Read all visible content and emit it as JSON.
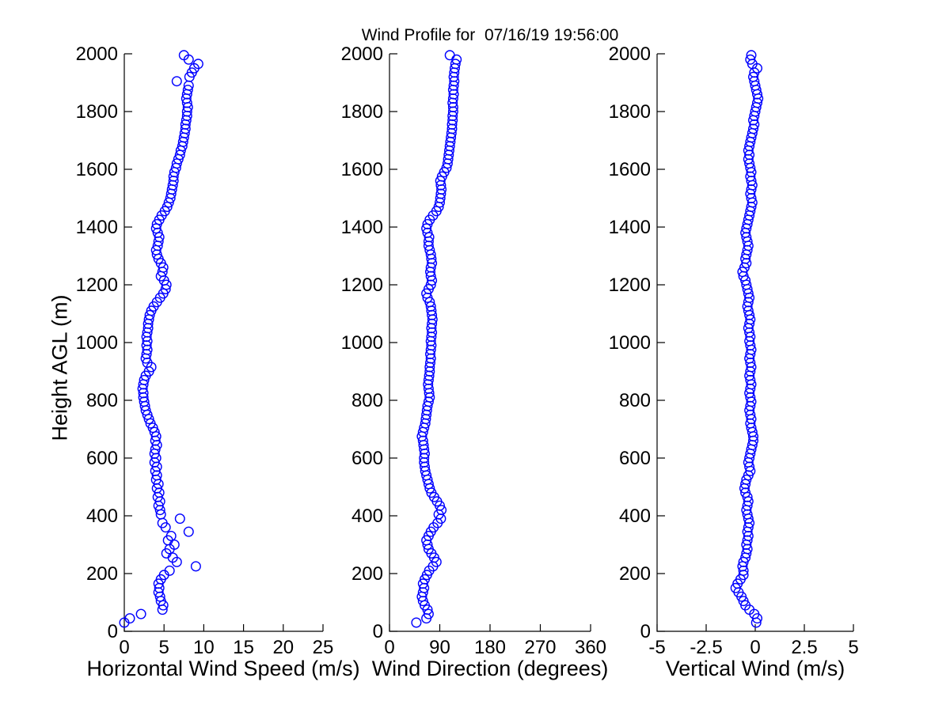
{
  "title": "Wind Profile for  07/16/19 19:56:00",
  "marker": {
    "shape": "open-circle",
    "color": "#0000FF"
  },
  "chart_data": {
    "type": "scatter",
    "title": "Wind Profile for  07/16/19 19:56:00",
    "ylabel": "Height AGL (m)",
    "ylim": [
      0,
      2000
    ],
    "yticks": [
      0,
      200,
      400,
      600,
      800,
      1000,
      1200,
      1400,
      1600,
      1800,
      2000
    ],
    "grid": false,
    "legend": null,
    "heights_m": [
      30,
      45,
      60,
      75,
      90,
      105,
      120,
      135,
      150,
      165,
      180,
      195,
      210,
      225,
      240,
      255,
      270,
      285,
      300,
      315,
      330,
      345,
      360,
      375,
      390,
      405,
      420,
      435,
      450,
      465,
      480,
      495,
      510,
      525,
      540,
      555,
      570,
      585,
      600,
      615,
      630,
      645,
      660,
      675,
      690,
      705,
      720,
      735,
      750,
      765,
      780,
      795,
      810,
      825,
      840,
      855,
      870,
      885,
      900,
      915,
      930,
      945,
      960,
      975,
      990,
      1005,
      1020,
      1035,
      1050,
      1065,
      1080,
      1095,
      1110,
      1125,
      1140,
      1155,
      1170,
      1185,
      1200,
      1215,
      1230,
      1245,
      1260,
      1275,
      1290,
      1305,
      1320,
      1335,
      1350,
      1365,
      1380,
      1395,
      1410,
      1425,
      1440,
      1455,
      1470,
      1485,
      1500,
      1515,
      1530,
      1545,
      1560,
      1575,
      1590,
      1605,
      1620,
      1635,
      1650,
      1665,
      1680,
      1695,
      1710,
      1725,
      1740,
      1755,
      1770,
      1785,
      1800,
      1815,
      1830,
      1845,
      1860,
      1875,
      1890,
      1905,
      1920,
      1935,
      1950,
      1965,
      1980,
      1995
    ],
    "subplots": [
      {
        "xlabel": "Horizontal Wind Speed (m/s)",
        "xlim": [
          0,
          25
        ],
        "xticks": [
          0,
          5,
          10,
          15,
          20,
          25
        ],
        "values": [
          0.0,
          0.7,
          2.1,
          4.8,
          4.9,
          4.6,
          4.5,
          4.3,
          4.4,
          4.3,
          4.6,
          5.0,
          5.7,
          9.0,
          6.6,
          6.1,
          5.3,
          5.7,
          6.3,
          5.5,
          5.9,
          8.1,
          5.2,
          4.8,
          7.0,
          4.6,
          4.5,
          4.3,
          4.5,
          4.2,
          4.4,
          4.1,
          4.3,
          4.0,
          4.1,
          3.9,
          4.1,
          3.8,
          4.0,
          3.8,
          3.9,
          4.1,
          3.9,
          4.0,
          3.8,
          3.6,
          3.3,
          3.1,
          2.9,
          2.7,
          2.6,
          2.5,
          2.4,
          2.4,
          2.3,
          2.4,
          2.5,
          2.7,
          3.1,
          3.4,
          2.9,
          2.7,
          2.8,
          2.9,
          2.8,
          2.9,
          2.8,
          2.9,
          3.0,
          3.0,
          3.1,
          3.2,
          3.4,
          3.7,
          4.1,
          4.5,
          4.9,
          5.2,
          5.3,
          5.0,
          4.6,
          4.8,
          4.9,
          4.6,
          4.3,
          4.1,
          4.0,
          4.2,
          4.3,
          4.4,
          4.2,
          4.0,
          4.1,
          4.4,
          4.7,
          5.1,
          5.4,
          5.6,
          5.8,
          5.9,
          6.0,
          6.1,
          6.2,
          6.2,
          6.3,
          6.5,
          6.6,
          6.8,
          7.0,
          7.1,
          7.3,
          7.4,
          7.5,
          7.6,
          7.7,
          7.7,
          7.8,
          7.9,
          7.9,
          8.0,
          7.9,
          7.8,
          7.9,
          8.0,
          8.1,
          6.6,
          8.2,
          8.5,
          8.8,
          9.3,
          8.1,
          7.5
        ]
      },
      {
        "xlabel": "Wind Direction (degrees)",
        "xlim": [
          0,
          360
        ],
        "xticks": [
          0,
          90,
          180,
          270,
          360
        ],
        "values": [
          48,
          66,
          70,
          68,
          63,
          60,
          58,
          60,
          62,
          60,
          63,
          67,
          71,
          78,
          84,
          80,
          75,
          70,
          68,
          66,
          70,
          74,
          79,
          86,
          92,
          88,
          93,
          90,
          85,
          80,
          75,
          72,
          70,
          68,
          66,
          64,
          63,
          62,
          62,
          63,
          62,
          61,
          60,
          58,
          60,
          62,
          64,
          65,
          66,
          67,
          68,
          70,
          72,
          71,
          70,
          69,
          70,
          71,
          72,
          72,
          73,
          74,
          73,
          74,
          75,
          74,
          75,
          76,
          75,
          76,
          77,
          76,
          75,
          74,
          72,
          68,
          66,
          70,
          74,
          76,
          74,
          73,
          74,
          76,
          75,
          74,
          72,
          70,
          70,
          71,
          68,
          66,
          68,
          72,
          78,
          84,
          88,
          90,
          91,
          92,
          93,
          92,
          91,
          94,
          98,
          102,
          104,
          105,
          106,
          107,
          108,
          109,
          110,
          111,
          112,
          112,
          113,
          113,
          114,
          114,
          113,
          114,
          115,
          114,
          115,
          116,
          115,
          116,
          117,
          118,
          120,
          108
        ]
      },
      {
        "xlabel": "Vertical Wind (m/s)",
        "xlim": [
          -5,
          5
        ],
        "xticks": [
          -5,
          -2.5,
          0,
          2.5,
          5
        ],
        "values": [
          0.05,
          0.1,
          -0.05,
          -0.3,
          -0.5,
          -0.6,
          -0.7,
          -0.85,
          -1.0,
          -0.9,
          -0.75,
          -0.6,
          -0.6,
          -0.65,
          -0.6,
          -0.5,
          -0.45,
          -0.4,
          -0.45,
          -0.4,
          -0.35,
          -0.4,
          -0.35,
          -0.3,
          -0.35,
          -0.4,
          -0.45,
          -0.4,
          -0.35,
          -0.4,
          -0.5,
          -0.55,
          -0.5,
          -0.45,
          -0.35,
          -0.25,
          -0.3,
          -0.35,
          -0.3,
          -0.25,
          -0.2,
          -0.15,
          -0.1,
          -0.1,
          -0.15,
          -0.2,
          -0.25,
          -0.2,
          -0.25,
          -0.3,
          -0.25,
          -0.2,
          -0.25,
          -0.3,
          -0.25,
          -0.2,
          -0.25,
          -0.3,
          -0.25,
          -0.2,
          -0.25,
          -0.3,
          -0.25,
          -0.2,
          -0.25,
          -0.3,
          -0.25,
          -0.3,
          -0.35,
          -0.3,
          -0.25,
          -0.3,
          -0.35,
          -0.4,
          -0.35,
          -0.3,
          -0.35,
          -0.4,
          -0.45,
          -0.5,
          -0.6,
          -0.65,
          -0.55,
          -0.45,
          -0.5,
          -0.45,
          -0.4,
          -0.35,
          -0.4,
          -0.45,
          -0.5,
          -0.45,
          -0.4,
          -0.35,
          -0.3,
          -0.25,
          -0.2,
          -0.15,
          -0.2,
          -0.25,
          -0.2,
          -0.15,
          -0.2,
          -0.25,
          -0.2,
          -0.25,
          -0.3,
          -0.35,
          -0.3,
          -0.35,
          -0.3,
          -0.25,
          -0.2,
          -0.15,
          -0.1,
          -0.05,
          -0.1,
          -0.05,
          0.0,
          0.05,
          0.1,
          0.15,
          0.1,
          0.05,
          0.0,
          -0.05,
          -0.1,
          -0.05,
          0.1,
          -0.15,
          -0.25,
          -0.2
        ]
      }
    ]
  }
}
